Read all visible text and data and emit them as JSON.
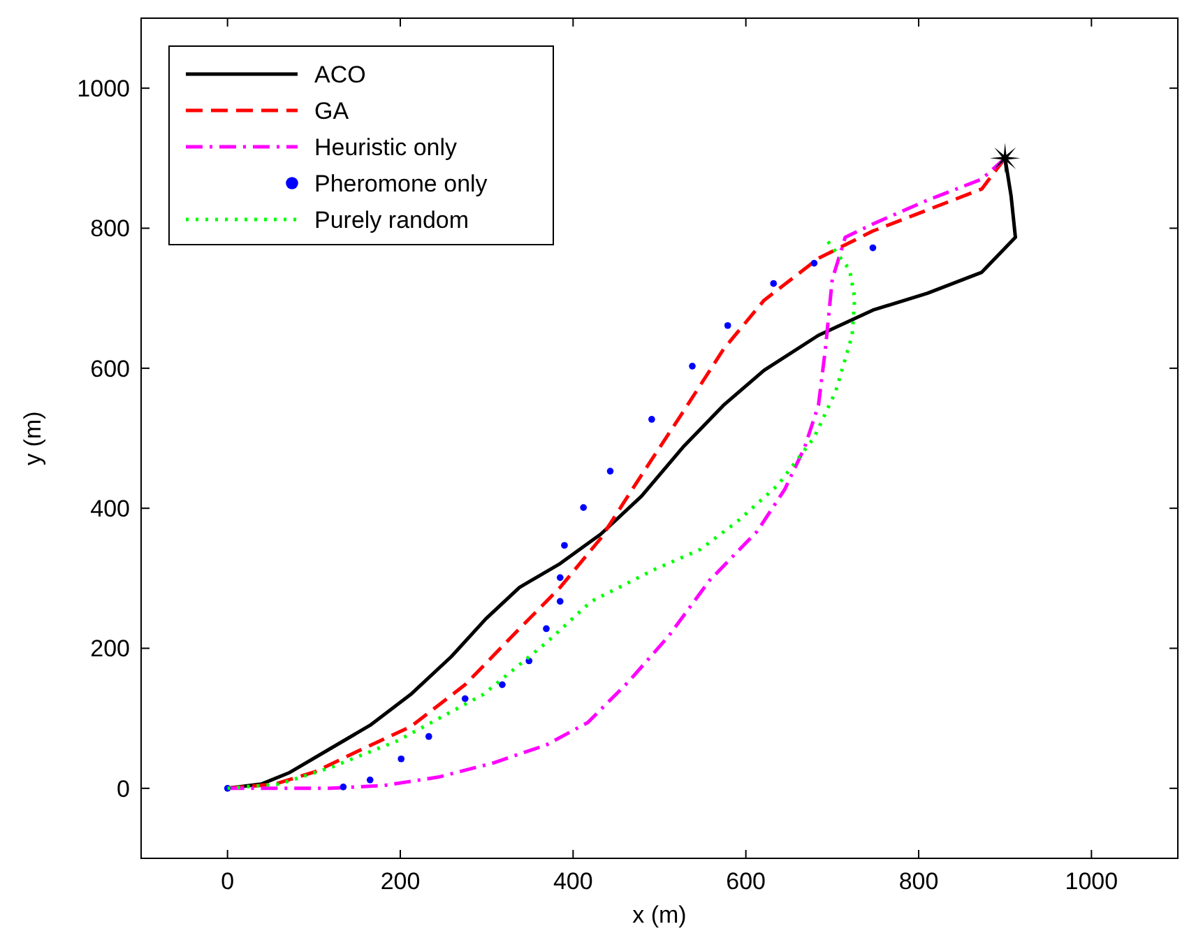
{
  "chart_data": {
    "type": "line",
    "xlabel": "x (m)",
    "ylabel": "y (m)",
    "xlim": [
      -100,
      1100
    ],
    "ylim": [
      -100,
      1100
    ],
    "xticks": [
      0,
      200,
      400,
      600,
      800,
      1000
    ],
    "yticks": [
      0,
      200,
      400,
      600,
      800,
      1000
    ],
    "grid": false,
    "legend": "top left",
    "series": [
      {
        "name": "ACO",
        "color": "#000000",
        "line_style": "solid",
        "marker": "none",
        "x": [
          0,
          39,
          71,
          118,
          165,
          212,
          259,
          299,
          338,
          385,
          432,
          479,
          527,
          574,
          621,
          684,
          747,
          810,
          873,
          912,
          907,
          900
        ],
        "values": [
          0,
          6,
          22,
          56,
          90,
          134,
          188,
          242,
          287,
          321,
          363,
          417,
          487,
          547,
          597,
          647,
          683,
          707,
          737,
          787,
          846,
          900
        ]
      },
      {
        "name": "GA",
        "color": "#ff0000",
        "line_style": "dashed",
        "marker": "none",
        "x": [
          0,
          55,
          102,
          149,
          212,
          275,
          338,
          385,
          432,
          479,
          527,
          574,
          621,
          684,
          747,
          810,
          873,
          900
        ],
        "values": [
          0,
          6,
          24,
          52,
          88,
          148,
          228,
          287,
          357,
          447,
          537,
          627,
          697,
          757,
          796,
          826,
          856,
          900
        ]
      },
      {
        "name": "Heuristic only",
        "color": "#ff00ff",
        "line_style": "dashdot",
        "marker": "none",
        "x": [
          0,
          118,
          181,
          244,
          307,
          369,
          417,
          464,
          511,
          558,
          613,
          645,
          668,
          684,
          692,
          700,
          715,
          747,
          810,
          873,
          900
        ],
        "values": [
          0,
          0,
          4,
          16,
          36,
          62,
          94,
          152,
          218,
          297,
          367,
          427,
          487,
          547,
          627,
          727,
          787,
          806,
          840,
          870,
          900
        ]
      },
      {
        "name": "Pheromone only",
        "type": "scatter",
        "color": "#0000ff",
        "line_style": "none",
        "marker": "circle",
        "x": [
          0,
          134,
          165,
          201,
          233,
          275,
          318,
          349,
          369,
          385,
          385,
          390,
          412,
          443,
          491,
          538,
          579,
          632,
          679,
          747
        ],
        "values": [
          0,
          2,
          12,
          42,
          74,
          128,
          148,
          182,
          228,
          267,
          301,
          347,
          401,
          453,
          527,
          603,
          661,
          721,
          750,
          772
        ]
      },
      {
        "name": "Purely random",
        "color": "#00ff00",
        "line_style": "dotted",
        "marker": "none",
        "x": [
          0,
          60,
          120,
          197,
          296,
          369,
          421,
          495,
          547,
          590,
          637,
          679,
          704,
          723,
          726,
          720,
          695
        ],
        "values": [
          0,
          6,
          30,
          68,
          134,
          208,
          267,
          313,
          341,
          381,
          433,
          501,
          567,
          647,
          701,
          741,
          781
        ]
      },
      {
        "type": "scatter",
        "color": "#000000",
        "marker": "star",
        "x": [
          900
        ],
        "values": [
          900
        ]
      }
    ]
  }
}
